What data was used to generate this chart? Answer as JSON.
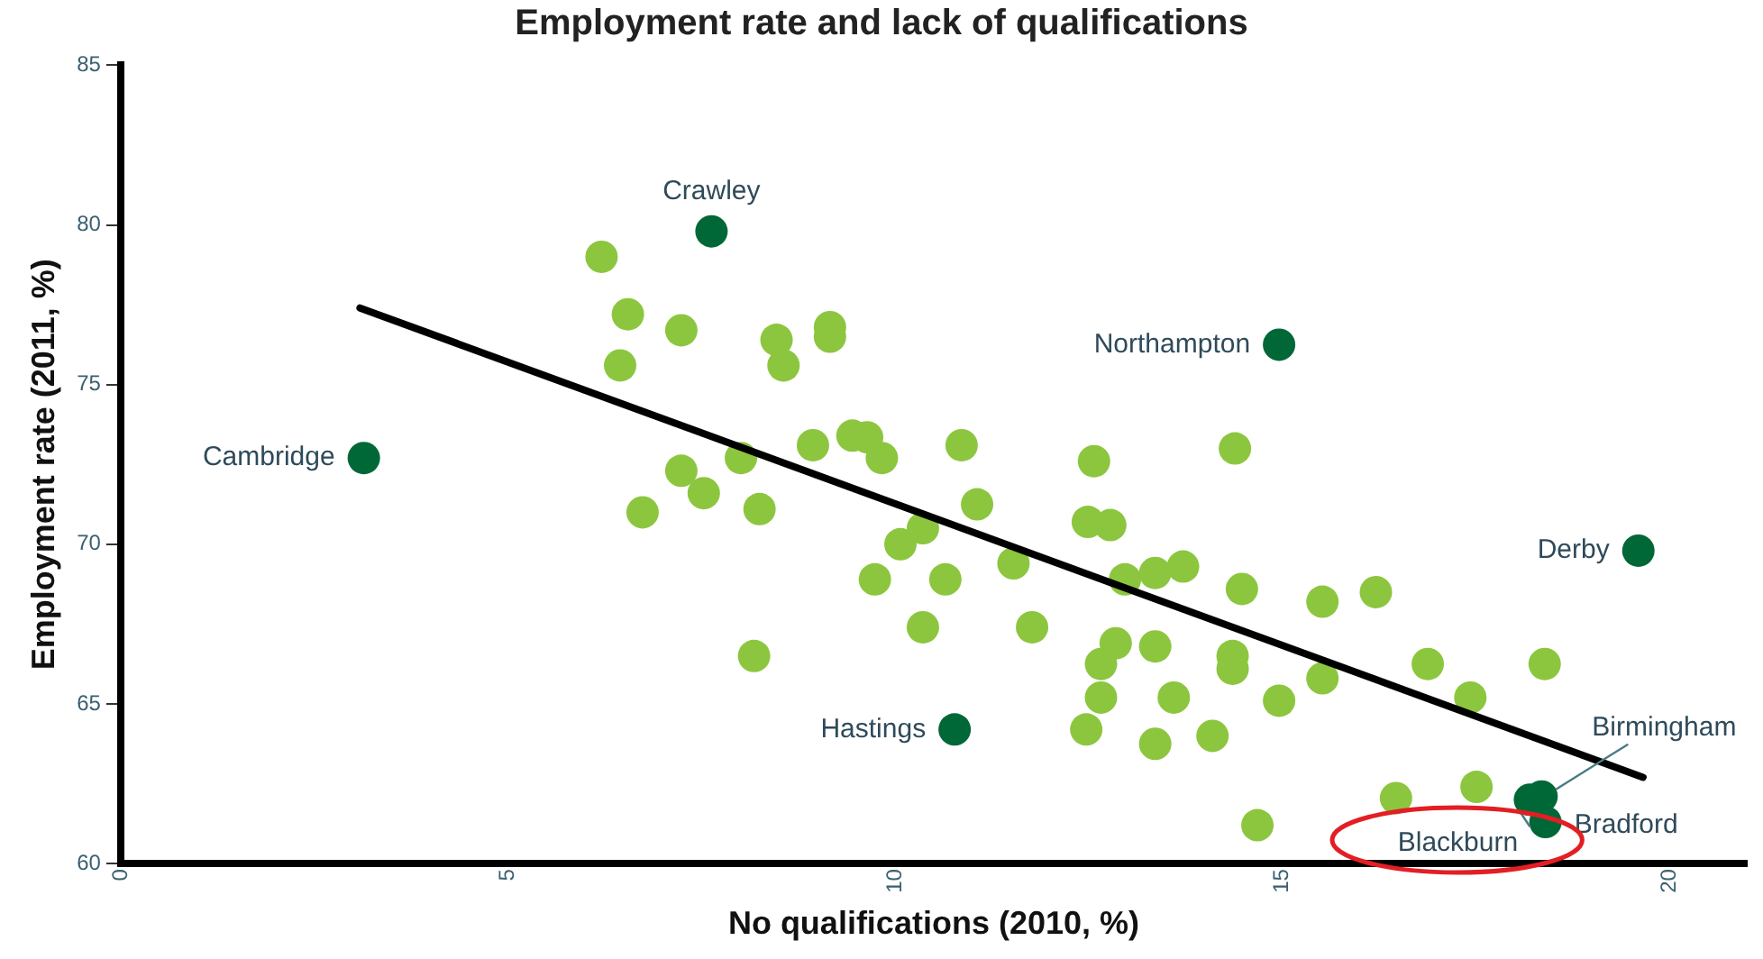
{
  "chart_data": {
    "type": "scatter",
    "title": "Employment rate and lack of qualifications",
    "xlabel": "No qualifications (2010, %)",
    "ylabel": "Employment rate (2011, %)",
    "xlim": [
      0,
      21
    ],
    "xticks": [
      0,
      5,
      10,
      15,
      20
    ],
    "ylim": [
      60,
      85
    ],
    "yticks": [
      60,
      65,
      70,
      75,
      80,
      85
    ],
    "grid": false,
    "legend": false,
    "marker": "circle",
    "series": [
      {
        "color": "#8cc63f",
        "x": [
          6.21,
          6.55,
          7.24,
          6.45,
          8.47,
          8.56,
          9.16,
          9.16,
          8.94,
          9.45,
          9.64,
          9.83,
          7.24,
          7.53,
          8.01,
          6.74,
          8.25,
          8.18,
          10.07,
          9.74,
          10.36,
          10.36,
          10.86,
          12.57,
          14.39,
          11.06,
          12.49,
          12.78,
          10.65,
          11.53,
          11.77,
          12.97,
          13.36,
          13.72,
          14.48,
          15.52,
          16.21,
          12.85,
          12.66,
          13.36,
          14.36,
          14.36,
          12.66,
          13.6,
          14.96,
          15.52,
          16.88,
          17.43,
          18.39,
          12.47,
          13.36,
          14.1,
          14.68,
          16.47,
          17.51
        ],
        "values": [
          79.0,
          77.2,
          76.7,
          75.6,
          76.4,
          75.6,
          76.8,
          76.5,
          73.1,
          73.4,
          73.35,
          72.7,
          72.3,
          71.6,
          72.7,
          71.0,
          71.1,
          66.5,
          70.0,
          68.9,
          67.4,
          70.5,
          73.1,
          72.6,
          73.0,
          71.25,
          70.7,
          70.6,
          68.9,
          69.4,
          67.4,
          68.9,
          69.1,
          69.3,
          68.6,
          68.2,
          68.5,
          66.9,
          66.25,
          66.8,
          66.5,
          66.1,
          65.2,
          65.2,
          65.1,
          65.8,
          66.25,
          65.2,
          66.25,
          64.2,
          63.75,
          64.0,
          61.2,
          62.05,
          62.4
        ]
      },
      {
        "color": "#006837",
        "x": [
          7.63,
          3.14,
          14.96,
          19.6,
          10.77,
          18.35,
          18.2,
          18.4
        ],
        "values": [
          79.8,
          72.7,
          76.25,
          69.8,
          64.2,
          62.1,
          62.0,
          61.3
        ]
      },
      {
        "type": "line",
        "color": "#000000",
        "marker": "none",
        "x": [
          3.09,
          19.66
        ],
        "values": [
          77.4,
          62.7
        ]
      }
    ],
    "annotations": [
      {
        "text": "Crawley",
        "x": 7.63,
        "y": 79.8
      },
      {
        "text": "Cambridge",
        "x": 3.14,
        "y": 72.7
      },
      {
        "text": "Northampton",
        "x": 14.96,
        "y": 76.25
      },
      {
        "text": "Derby",
        "x": 19.6,
        "y": 69.8
      },
      {
        "text": "Hastings",
        "x": 10.77,
        "y": 64.2
      },
      {
        "text": "Birmingham",
        "x": 18.35,
        "y": 62.1
      },
      {
        "text": "Blackburn",
        "x": 18.2,
        "y": 62.0
      },
      {
        "text": "Bradford",
        "x": 18.4,
        "y": 61.3
      }
    ]
  }
}
